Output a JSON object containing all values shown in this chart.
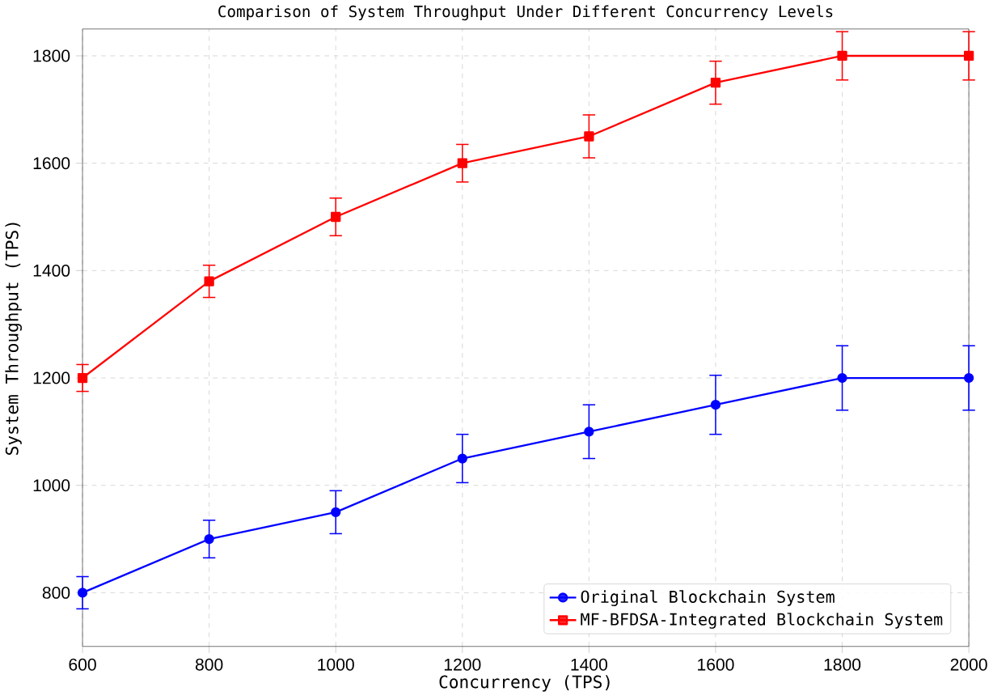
{
  "chart_data": {
    "type": "line",
    "title": "Comparison of System Throughput Under Different Concurrency Levels",
    "xlabel": "Concurrency (TPS)",
    "ylabel": "System Throughput (TPS)",
    "x": [
      600,
      800,
      1000,
      1200,
      1400,
      1600,
      1800,
      2000
    ],
    "series": [
      {
        "name": "Original Blockchain System",
        "color": "#0000ff",
        "marker": "circle",
        "values": [
          800,
          900,
          950,
          1050,
          1100,
          1150,
          1200,
          1200
        ],
        "errors": [
          30,
          35,
          40,
          45,
          50,
          55,
          60,
          60
        ]
      },
      {
        "name": "MF-BFDSA-Integrated Blockchain System",
        "color": "#ff0000",
        "marker": "square",
        "values": [
          1200,
          1380,
          1500,
          1600,
          1650,
          1750,
          1800,
          1800
        ],
        "errors": [
          25,
          30,
          35,
          35,
          40,
          40,
          45,
          45
        ]
      }
    ],
    "xlim": [
      600,
      2000
    ],
    "xticks": [
      600,
      800,
      1000,
      1200,
      1400,
      1600,
      1800,
      2000
    ],
    "ylim": [
      700,
      1850
    ],
    "yticks": [
      800,
      1000,
      1200,
      1400,
      1600,
      1800
    ],
    "grid": true,
    "legend": "bottom right",
    "line_style": "solid"
  }
}
